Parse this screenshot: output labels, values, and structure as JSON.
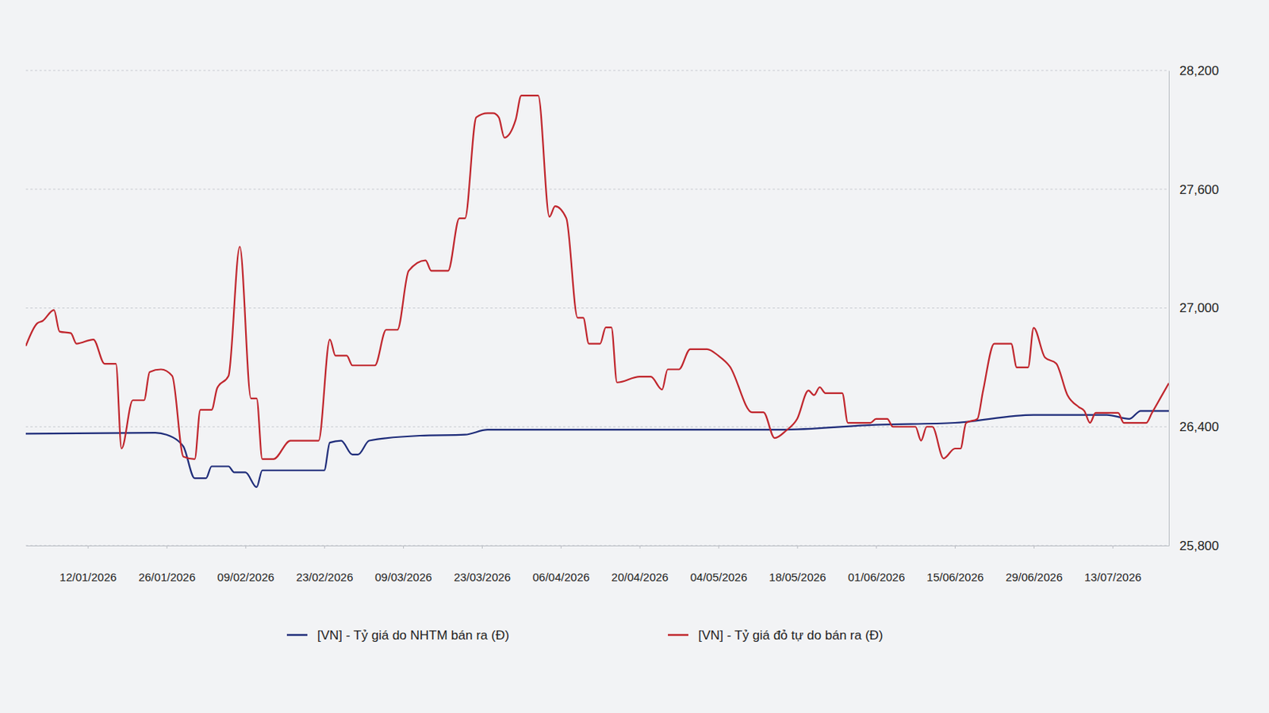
{
  "chart_data": {
    "type": "line",
    "xlim": [
      "2026-01-01",
      "2026-07-23"
    ],
    "xticks": [
      {
        "value": "2026-01-12",
        "label": "12/01/2026"
      },
      {
        "value": "2026-01-26",
        "label": "26/01/2026"
      },
      {
        "value": "2026-02-09",
        "label": "09/02/2026"
      },
      {
        "value": "2026-02-23",
        "label": "23/02/2026"
      },
      {
        "value": "2026-03-09",
        "label": "09/03/2026"
      },
      {
        "value": "2026-03-23",
        "label": "23/03/2026"
      },
      {
        "value": "2026-04-06",
        "label": "06/04/2026"
      },
      {
        "value": "2026-04-20",
        "label": "20/04/2026"
      },
      {
        "value": "2026-05-04",
        "label": "04/05/2026"
      },
      {
        "value": "2026-05-18",
        "label": "18/05/2026"
      },
      {
        "value": "2026-06-01",
        "label": "01/06/2026"
      },
      {
        "value": "2026-06-15",
        "label": "15/06/2026"
      },
      {
        "value": "2026-06-29",
        "label": "29/06/2026"
      },
      {
        "value": "2026-07-13",
        "label": "13/07/2026"
      }
    ],
    "ylim": [
      25800,
      28200
    ],
    "yticks": [
      {
        "value": 25800,
        "label": "25,800"
      },
      {
        "value": 26400,
        "label": "26,400"
      },
      {
        "value": 27000,
        "label": "27,000"
      },
      {
        "value": 27600,
        "label": "27,600"
      },
      {
        "value": 28200,
        "label": "28,200"
      }
    ],
    "grid": true,
    "legend": "bottom",
    "series": [
      {
        "name": "[VN] - Tỷ giá do NHTM bán ra (Đ)",
        "color": "#1f2d7a",
        "x": [
          "2026-01-01",
          "2026-01-24",
          "2026-01-26",
          "2026-01-28",
          "2026-01-29",
          "2026-01-31",
          "2026-02-02",
          "2026-02-03",
          "2026-02-06",
          "2026-02-07",
          "2026-02-09",
          "2026-02-11",
          "2026-02-12",
          "2026-02-23",
          "2026-02-24",
          "2026-02-26",
          "2026-02-28",
          "2026-03-01",
          "2026-03-03",
          "2026-03-12",
          "2026-03-20",
          "2026-03-24",
          "2026-05-15",
          "2026-06-01",
          "2026-06-15",
          "2026-06-29",
          "2026-07-12",
          "2026-07-16",
          "2026-07-18",
          "2026-07-23"
        ],
        "values": [
          26365,
          26370,
          26360,
          26330,
          26300,
          26140,
          26140,
          26200,
          26200,
          26170,
          26170,
          26095,
          26180,
          26180,
          26320,
          26330,
          26260,
          26260,
          26330,
          26355,
          26360,
          26385,
          26385,
          26410,
          26420,
          26460,
          26460,
          26440,
          26480,
          26480
        ]
      },
      {
        "name": "[VN] - Tỷ giá đỏ tự do bán ra (Đ)",
        "color": "#c0262d",
        "x": [
          "2026-01-01",
          "2026-01-03",
          "2026-01-04",
          "2026-01-06",
          "2026-01-07",
          "2026-01-09",
          "2026-01-10",
          "2026-01-13",
          "2026-01-15",
          "2026-01-17",
          "2026-01-18",
          "2026-01-20",
          "2026-01-22",
          "2026-01-23",
          "2026-01-25",
          "2026-01-27",
          "2026-01-29",
          "2026-01-31",
          "2026-02-01",
          "2026-02-03",
          "2026-02-04",
          "2026-02-06",
          "2026-02-08",
          "2026-02-10",
          "2026-02-11",
          "2026-02-12",
          "2026-02-14",
          "2026-02-17",
          "2026-02-22",
          "2026-02-24",
          "2026-02-25",
          "2026-02-27",
          "2026-02-28",
          "2026-03-04",
          "2026-03-06",
          "2026-03-08",
          "2026-03-10",
          "2026-03-13",
          "2026-03-14",
          "2026-03-17",
          "2026-03-19",
          "2026-03-20",
          "2026-03-22",
          "2026-03-24",
          "2026-03-25",
          "2026-03-26",
          "2026-03-27",
          "2026-03-29",
          "2026-03-30",
          "2026-04-02",
          "2026-04-04",
          "2026-04-05",
          "2026-04-07",
          "2026-04-09",
          "2026-04-10",
          "2026-04-11",
          "2026-04-13",
          "2026-04-14",
          "2026-04-15",
          "2026-04-16",
          "2026-04-20",
          "2026-04-22",
          "2026-04-24",
          "2026-04-25",
          "2026-04-27",
          "2026-04-29",
          "2026-05-02",
          "2026-05-04",
          "2026-05-06",
          "2026-05-10",
          "2026-05-12",
          "2026-05-14",
          "2026-05-16",
          "2026-05-18",
          "2026-05-20",
          "2026-05-21",
          "2026-05-22",
          "2026-05-23",
          "2026-05-26",
          "2026-05-27",
          "2026-05-31",
          "2026-06-01",
          "2026-06-03",
          "2026-06-04",
          "2026-06-08",
          "2026-06-09",
          "2026-06-10",
          "2026-06-11",
          "2026-06-13",
          "2026-06-15",
          "2026-06-16",
          "2026-06-17",
          "2026-06-19",
          "2026-06-20",
          "2026-06-22",
          "2026-06-25",
          "2026-06-26",
          "2026-06-28",
          "2026-06-29",
          "2026-07-01",
          "2026-07-03",
          "2026-07-05",
          "2026-07-07",
          "2026-07-08",
          "2026-07-09",
          "2026-07-10",
          "2026-07-14",
          "2026-07-15",
          "2026-07-19",
          "2026-07-20",
          "2026-07-23"
        ],
        "values": [
          26808,
          26922,
          26935,
          26990,
          26881,
          26873,
          26820,
          26841,
          26718,
          26718,
          26290,
          26534,
          26534,
          26677,
          26690,
          26657,
          26249,
          26237,
          26486,
          26486,
          26596,
          26657,
          27310,
          26543,
          26543,
          26237,
          26237,
          26330,
          26330,
          26841,
          26759,
          26759,
          26710,
          26710,
          26890,
          26890,
          27188,
          27241,
          27188,
          27188,
          27453,
          27453,
          27963,
          27984,
          27984,
          27963,
          27861,
          27951,
          28073,
          28073,
          27461,
          27514,
          27453,
          26951,
          26951,
          26820,
          26820,
          26902,
          26902,
          26624,
          26653,
          26653,
          26588,
          26690,
          26690,
          26792,
          26792,
          26759,
          26706,
          26473,
          26473,
          26343,
          26380,
          26440,
          26583,
          26560,
          26600,
          26570,
          26570,
          26420,
          26420,
          26440,
          26440,
          26400,
          26400,
          26330,
          26400,
          26400,
          26240,
          26290,
          26290,
          26420,
          26440,
          26580,
          26820,
          26820,
          26700,
          26700,
          26900,
          26750,
          26720,
          26560,
          26500,
          26480,
          26420,
          26470,
          26470,
          26420,
          26420,
          26470,
          26620
        ]
      }
    ]
  }
}
